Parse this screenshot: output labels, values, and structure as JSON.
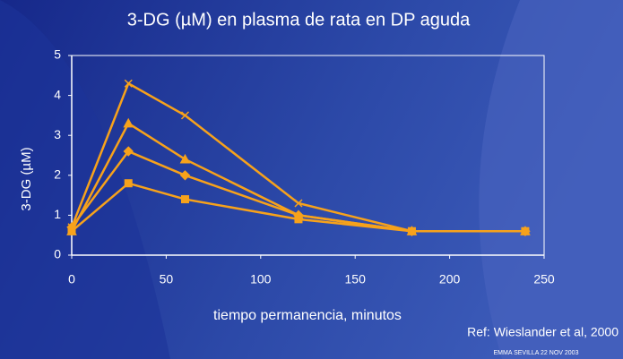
{
  "chart_data": {
    "type": "line",
    "title": "3-DG (µM) en plasma de rata en DP aguda",
    "xlabel": "tiempo permanencia, minutos",
    "ylabel": "3-DG (µM)",
    "reference": "Ref: Wieslander et al, 2000",
    "footer": "EMMA  SEVILLA 22 NOV 2003",
    "x": [
      0,
      30,
      60,
      120,
      180,
      240
    ],
    "series": [
      {
        "color": "#f7a21b",
        "marker": "cross",
        "values": [
          0.7,
          4.3,
          3.5,
          1.3,
          0.6,
          0.6
        ]
      },
      {
        "color": "#f7a21b",
        "marker": "triangle",
        "values": [
          0.6,
          3.3,
          2.4,
          1.0,
          0.6,
          0.6
        ]
      },
      {
        "color": "#f7a21b",
        "marker": "diamond",
        "values": [
          0.7,
          2.6,
          2.0,
          1.0,
          0.6,
          0.6
        ]
      },
      {
        "color": "#f7a21b",
        "marker": "square",
        "values": [
          0.6,
          1.8,
          1.4,
          0.9,
          0.6,
          0.6
        ]
      }
    ],
    "xlim": [
      0,
      250
    ],
    "xticks": [
      0,
      50,
      100,
      150,
      200,
      250
    ],
    "ylim": [
      0,
      5
    ],
    "yticks": [
      0,
      1,
      2,
      3,
      4,
      5
    ]
  }
}
